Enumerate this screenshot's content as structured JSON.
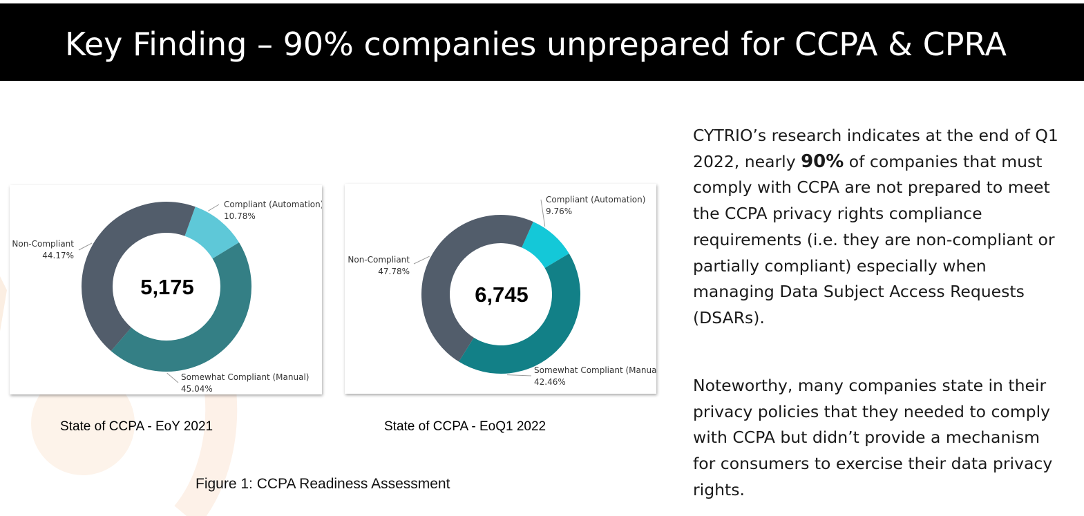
{
  "header": {
    "title": "Key Finding – 90% companies unprepared for CCPA & CPRA"
  },
  "colors": {
    "header_bg": "#000000",
    "non_compliant": "#525d6b",
    "automation_2021": "#5ec8d8",
    "manual_2021": "#347f85",
    "automation_2022": "#14c8d8",
    "manual_2022": "#128087",
    "decor_accent": "#fbece0"
  },
  "chart_data": [
    {
      "type": "pie",
      "variant": "donut",
      "center_value": "5,175",
      "caption": "State of CCPA  - EoY 2021",
      "series": [
        {
          "name": "Compliant (Automation)",
          "label": "10.78%",
          "value": 10.78
        },
        {
          "name": "Somewhat Compliant (Manual)",
          "label": "45.04%",
          "value": 45.04
        },
        {
          "name": "Non-Compliant",
          "label": "44.17%",
          "value": 44.17
        }
      ]
    },
    {
      "type": "pie",
      "variant": "donut",
      "center_value": "6,745",
      "caption": "State of CCPA  - EoQ1 2022",
      "series": [
        {
          "name": "Compliant (Automation)",
          "label": "9.76%",
          "value": 9.76
        },
        {
          "name": "Somewhat Compliant (Manual)",
          "label": "42.46%",
          "value": 42.46
        },
        {
          "name": "Non-Compliant",
          "label": "47.78%",
          "value": 47.78
        }
      ]
    }
  ],
  "figure_caption": "Figure 1: CCPA Readiness Assessment",
  "paragraphs": {
    "p1_before": "CYTRIO’s research indicates at the end of Q1 2022, nearly ",
    "p1_bold": "90%",
    "p1_after": " of companies that must comply with CCPA are not prepared to meet the CCPA privacy rights compliance requirements (i.e. they are non-compliant or partially compliant) especially when managing Data Subject Access Requests (DSARs).",
    "p2": "Noteworthy, many companies state in their privacy policies that they needed to comply with CCPA but didn’t provide a mechanism for consumers to exercise their data privacy rights."
  }
}
